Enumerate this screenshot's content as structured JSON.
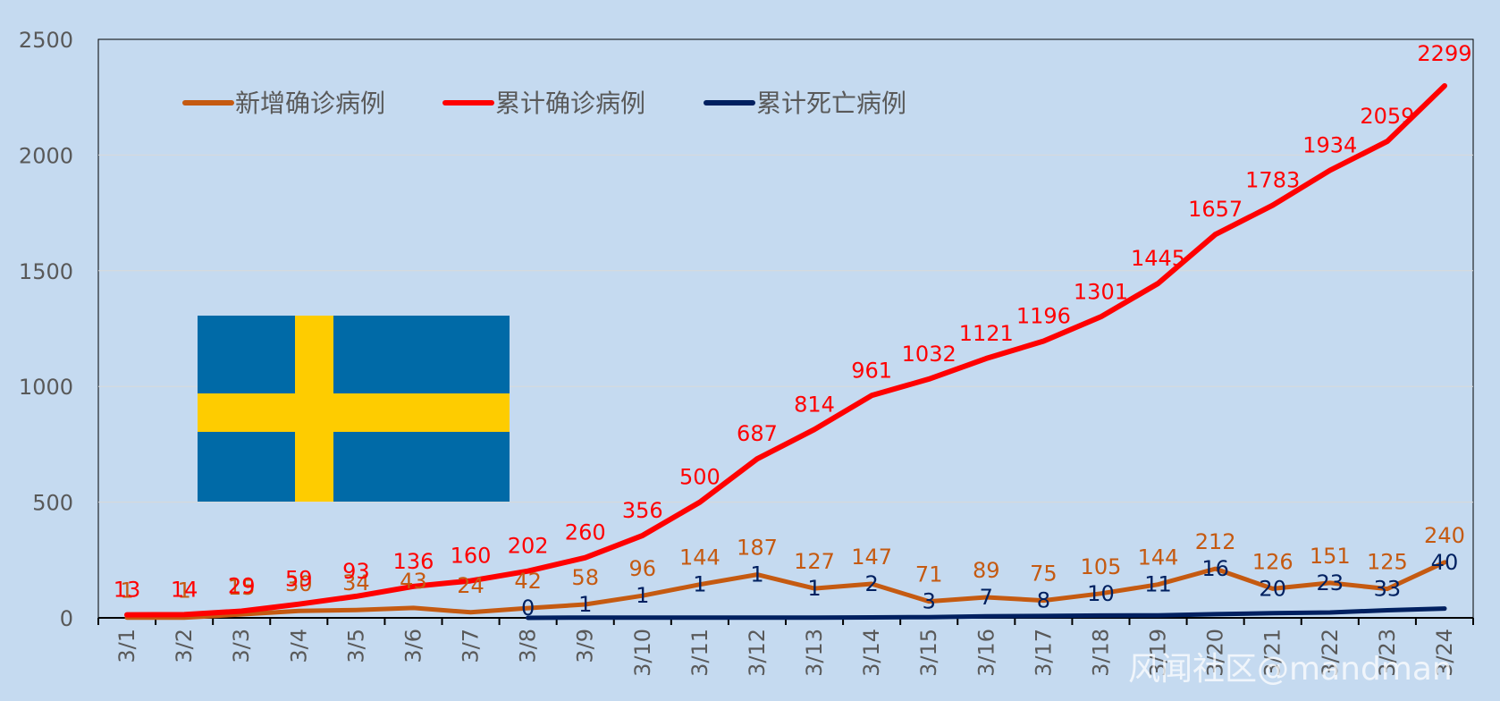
{
  "chart_data": {
    "type": "line",
    "categories": [
      "3/1",
      "3/2",
      "3/3",
      "3/4",
      "3/5",
      "3/6",
      "3/7",
      "3/8",
      "3/9",
      "3/10",
      "3/11",
      "3/12",
      "3/13",
      "3/14",
      "3/15",
      "3/16",
      "3/17",
      "3/18",
      "3/19",
      "3/20",
      "3/21",
      "3/22",
      "3/23",
      "3/24"
    ],
    "ylim": [
      0,
      2500
    ],
    "yticks": [
      0,
      500,
      1000,
      1500,
      2000,
      2500
    ],
    "grid": true,
    "legend_position": "top-left",
    "series": [
      {
        "name": "新增确诊病例",
        "color": "#c55a11",
        "values": [
          1,
          1,
          15,
          30,
          34,
          43,
          24,
          42,
          58,
          96,
          144,
          187,
          127,
          147,
          71,
          89,
          75,
          105,
          144,
          212,
          126,
          151,
          125,
          240
        ]
      },
      {
        "name": "累计确诊病例",
        "color": "#ff0000",
        "values": [
          13,
          14,
          29,
          59,
          93,
          136,
          160,
          202,
          260,
          356,
          500,
          687,
          814,
          961,
          1032,
          1121,
          1196,
          1301,
          1445,
          1657,
          1783,
          1934,
          2059,
          2299
        ]
      },
      {
        "name": "累计死亡病例",
        "color": "#002060",
        "values": [
          null,
          null,
          null,
          null,
          null,
          null,
          null,
          0,
          1,
          1,
          1,
          1,
          1,
          2,
          3,
          7,
          8,
          10,
          11,
          16,
          20,
          23,
          33,
          40
        ]
      }
    ]
  },
  "flag": {
    "name": "sweden-flag",
    "blue": "#006aa7",
    "yellow": "#fecc00"
  },
  "watermark": "风闻社区@mandman"
}
